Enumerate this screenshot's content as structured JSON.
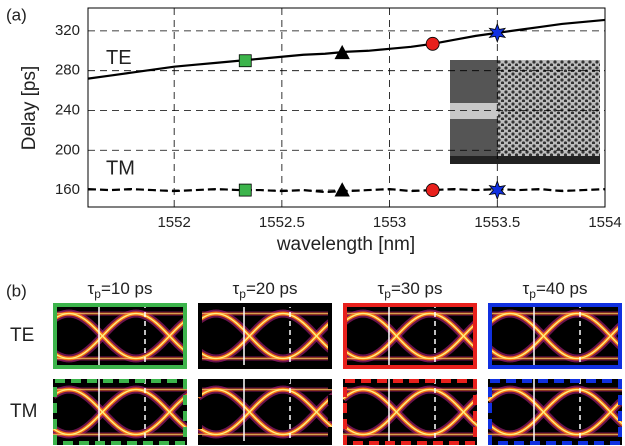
{
  "chart_data": {
    "type": "line",
    "panel_label": "(a)",
    "x_label": "wavelength [nm]",
    "y_label": "Delay [ps]",
    "x": [
      1551.6,
      1551.7,
      1551.8,
      1551.9,
      1552.0,
      1552.1,
      1552.2,
      1552.3,
      1552.4,
      1552.5,
      1552.6,
      1552.7,
      1552.8,
      1552.9,
      1553.0,
      1553.1,
      1553.2,
      1553.3,
      1553.4,
      1553.5,
      1553.6,
      1553.7,
      1553.8,
      1553.9,
      1554.0
    ],
    "series": [
      {
        "name": "TE",
        "color": "#000000",
        "dashed": false,
        "values": [
          272,
          275,
          278,
          281,
          284,
          286,
          288,
          290,
          292,
          294,
          296,
          297,
          299,
          300,
          302,
          304,
          307,
          311,
          315,
          318,
          321,
          324,
          327,
          329,
          331
        ]
      },
      {
        "name": "TM",
        "color": "#000000",
        "dashed": true,
        "values": [
          161,
          160,
          161,
          160,
          159,
          160,
          161,
          160,
          160,
          159,
          160,
          158,
          159,
          160,
          161,
          159,
          160,
          161,
          160,
          161,
          160,
          161,
          159,
          160,
          161
        ]
      }
    ],
    "markers": [
      {
        "x": 1552.33,
        "shape": "square",
        "color": "#3cb44b",
        "values": [
          290,
          160
        ]
      },
      {
        "x": 1552.78,
        "shape": "triangle",
        "color": "#000000",
        "values": [
          298,
          160
        ]
      },
      {
        "x": 1553.2,
        "shape": "circle",
        "color": "#e8201c",
        "values": [
          307,
          160
        ]
      },
      {
        "x": 1553.5,
        "shape": "star",
        "color": "#1030e0",
        "values": [
          318,
          160
        ]
      }
    ],
    "xlim": [
      1551.6,
      1554
    ],
    "ylim": [
      143,
      343
    ],
    "xticks": [
      1552,
      1552.5,
      1553,
      1553.5,
      1554
    ],
    "yticks": [
      160,
      200,
      240,
      280,
      320
    ],
    "grid": true
  },
  "eye_diagrams": {
    "panel_label": "(b)",
    "symbol": "τ",
    "subscript": "p",
    "headers": [
      "=10 ps",
      "=20 ps",
      "=30 ps",
      "=40 ps"
    ],
    "rows": [
      "TE",
      "TM"
    ],
    "frame_colors": [
      "#3cb44b",
      "#000000",
      "#e8201c",
      "#1030e0"
    ]
  }
}
